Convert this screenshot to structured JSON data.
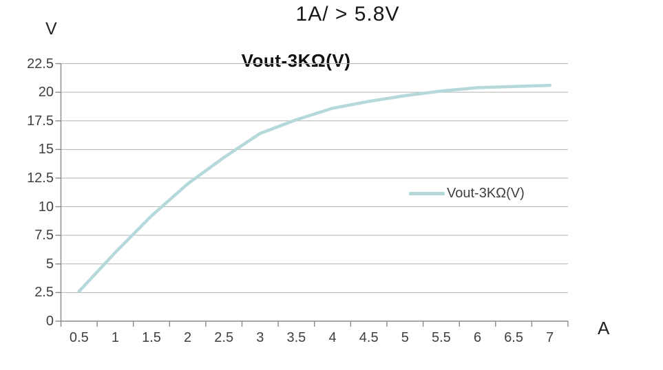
{
  "page_title": "1A/ > 5.8V",
  "chart_data": {
    "type": "line",
    "title": "Vout-3KΩ(V)",
    "xlabel": "A",
    "ylabel": "V",
    "categories": [
      "0.5",
      "1",
      "1.5",
      "2",
      "2.5",
      "3",
      "3.5",
      "4",
      "4.5",
      "5",
      "5.5",
      "6",
      "6.5",
      "7"
    ],
    "series": [
      {
        "name": "Vout-3KΩ(V)",
        "values": [
          2.6,
          6.0,
          9.2,
          12.0,
          14.3,
          16.4,
          17.6,
          18.6,
          19.2,
          19.7,
          20.1,
          20.4,
          20.5,
          20.6
        ],
        "color": "#b5d9db"
      }
    ],
    "ylim": [
      0,
      22.5
    ],
    "ytick_step": 2.5,
    "yticks": [
      0,
      2.5,
      5,
      7.5,
      10,
      12.5,
      15,
      17.5,
      20,
      22.5
    ],
    "ytick_labels": [
      "0",
      "2.5",
      "5",
      "7.5",
      "10",
      "12.5",
      "15",
      "17.5",
      "20",
      "22.5"
    ],
    "grid": "horizontal-only",
    "legend_position": "middle-right"
  },
  "colors": {
    "series_line": "#b5d9db",
    "gridline": "#b2b2b2",
    "axis_line": "#898989",
    "tick_text": "#3f3f3f",
    "title_text": "#111111"
  }
}
